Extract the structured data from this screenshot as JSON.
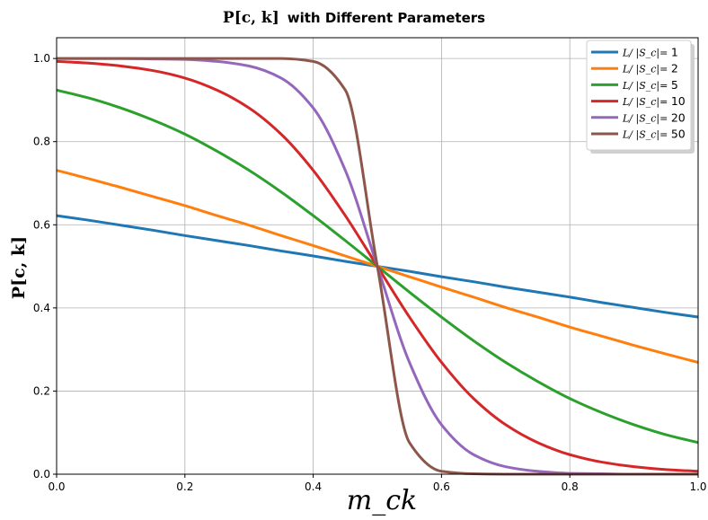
{
  "chart_data": {
    "type": "line",
    "title_math": "P[c, k]",
    "title_text": "with Different Parameters",
    "xlabel": "m_ck",
    "ylabel": "P[c, k]",
    "xlim": [
      0.0,
      1.0
    ],
    "ylim": [
      0.0,
      1.05
    ],
    "xticks": [
      "0.0",
      "0.2",
      "0.4",
      "0.6",
      "0.8",
      "1.0"
    ],
    "yticks": [
      "0.0",
      "0.2",
      "0.4",
      "0.6",
      "0.8",
      "1.0"
    ],
    "grid": true,
    "legend_position": "top-right",
    "legend_prefix": "L/ |S_c|= ",
    "x": [
      0.0,
      0.05,
      0.1,
      0.15,
      0.2,
      0.25,
      0.3,
      0.35,
      0.4,
      0.45,
      0.5,
      0.55,
      0.6,
      0.65,
      0.7,
      0.75,
      0.8,
      0.85,
      0.9,
      0.95,
      1.0
    ],
    "series": [
      {
        "name": "1",
        "color": "#1f77b4",
        "values": [
          0.622,
          0.611,
          0.599,
          0.587,
          0.574,
          0.562,
          0.55,
          0.537,
          0.525,
          0.512,
          0.5,
          0.488,
          0.475,
          0.463,
          0.45,
          0.438,
          0.426,
          0.413,
          0.401,
          0.389,
          0.378
        ]
      },
      {
        "name": "2",
        "color": "#ff7f0e",
        "values": [
          0.731,
          0.711,
          0.69,
          0.668,
          0.646,
          0.622,
          0.599,
          0.574,
          0.55,
          0.525,
          0.5,
          0.475,
          0.45,
          0.426,
          0.401,
          0.378,
          0.354,
          0.332,
          0.31,
          0.289,
          0.269
        ]
      },
      {
        "name": "5",
        "color": "#2ca02c",
        "values": [
          0.924,
          0.905,
          0.881,
          0.852,
          0.818,
          0.777,
          0.731,
          0.679,
          0.622,
          0.562,
          0.5,
          0.438,
          0.378,
          0.321,
          0.269,
          0.223,
          0.182,
          0.148,
          0.119,
          0.095,
          0.076
        ]
      },
      {
        "name": "10",
        "color": "#d62728",
        "values": [
          0.993,
          0.989,
          0.982,
          0.971,
          0.953,
          0.924,
          0.881,
          0.818,
          0.731,
          0.622,
          0.5,
          0.378,
          0.269,
          0.182,
          0.119,
          0.076,
          0.047,
          0.029,
          0.018,
          0.011,
          0.007
        ]
      },
      {
        "name": "20",
        "color": "#9467bd",
        "values": [
          1.0,
          1.0,
          1.0,
          0.999,
          0.998,
          0.993,
          0.982,
          0.953,
          0.881,
          0.731,
          0.5,
          0.269,
          0.119,
          0.047,
          0.018,
          0.007,
          0.002,
          0.001,
          0.0,
          0.0,
          0.0
        ]
      },
      {
        "name": "50",
        "color": "#8c564b",
        "values": [
          1.0,
          1.0,
          1.0,
          1.0,
          1.0,
          1.0,
          1.0,
          1.0,
          0.993,
          0.924,
          0.5,
          0.076,
          0.007,
          0.001,
          0.0,
          0.0,
          0.0,
          0.0,
          0.0,
          0.0,
          0.0
        ]
      }
    ]
  }
}
